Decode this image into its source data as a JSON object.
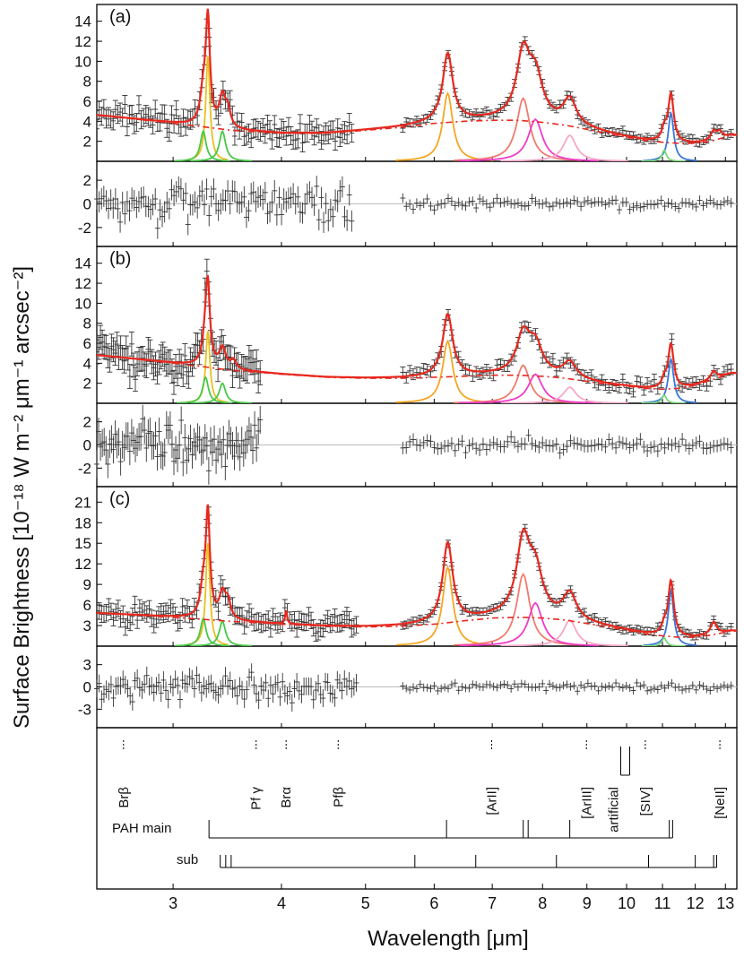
{
  "chart_data": {
    "type": "line",
    "x_scale": "log",
    "xlim": [
      2.45,
      13.4
    ],
    "xlabel": "Wavelength [μm]",
    "ylabel": "Surface Brightness [10⁻¹⁸ W m⁻² μm⁻¹ arcsec⁻²]",
    "x_ticks": [
      "3",
      "4",
      "5",
      "6",
      "7",
      "8",
      "9",
      "10",
      "11",
      "12",
      "13"
    ],
    "x_tick_values": [
      3,
      4,
      5,
      6,
      7,
      8,
      9,
      10,
      11,
      12,
      13
    ],
    "colors": {
      "total": "#e8281e",
      "continuum": "#e8281e",
      "pah_6_2": "#f5a623",
      "pah_7_7a": "#f07a6e",
      "pah_7_7b": "#f03cc8",
      "pah_8_6": "#f7a8c8",
      "pah_11_3": "#3a78d8",
      "pah_11_0": "#7ad87a",
      "pah_3_3": "#e8c020",
      "pah_3_3_green": "#48c848",
      "data": "#333333"
    },
    "panels": [
      {
        "label": "(a)",
        "ylim": [
          0,
          15.5
        ],
        "y_ticks": [
          "2",
          "4",
          "6",
          "8",
          "10",
          "12",
          "14"
        ],
        "y_tick_values": [
          2,
          4,
          6,
          8,
          10,
          12,
          14
        ],
        "residual_ylim": [
          -3.6,
          3.6
        ],
        "residual_ticks": [
          "-2",
          "0",
          "2"
        ],
        "residual_tick_values": [
          -2,
          0,
          2
        ],
        "continuum": {
          "x": [
            2.45,
            3.0,
            3.5,
            4.0,
            4.5,
            5.0,
            5.5,
            6.0,
            6.5,
            7.0,
            7.5,
            8.0,
            8.5,
            9.0,
            9.5,
            10.0,
            10.5,
            11.0,
            11.5,
            12.0,
            12.5,
            13.2
          ],
          "y": [
            4.6,
            3.8,
            3.1,
            2.8,
            2.8,
            3.1,
            3.4,
            3.8,
            4.0,
            4.1,
            4.1,
            3.9,
            3.6,
            3.2,
            2.8,
            2.4,
            2.1,
            1.9,
            1.8,
            1.8,
            2.0,
            2.6
          ]
        },
        "features": [
          {
            "center": 3.29,
            "height": 10.5,
            "width": 0.022,
            "color": "#e8c020"
          },
          {
            "center": 3.25,
            "height": 3.0,
            "width": 0.03,
            "color": "#48c848"
          },
          {
            "center": 3.42,
            "height": 3.0,
            "width": 0.035,
            "color": "#48c848"
          },
          {
            "center": 6.22,
            "height": 6.8,
            "width": 0.1,
            "color": "#f5a623"
          },
          {
            "center": 7.6,
            "height": 6.3,
            "width": 0.16,
            "color": "#f07a6e"
          },
          {
            "center": 7.85,
            "height": 4.2,
            "width": 0.18,
            "color": "#f03cc8"
          },
          {
            "center": 8.6,
            "height": 2.6,
            "width": 0.18,
            "color": "#f7a8c8"
          },
          {
            "center": 11.25,
            "height": 4.8,
            "width": 0.1,
            "color": "#3a78d8"
          },
          {
            "center": 11.05,
            "height": 1.1,
            "width": 0.08,
            "color": "#7ad87a"
          }
        ],
        "extra": [
          {
            "center": 3.47,
            "height": 1.6,
            "width": 0.03
          },
          {
            "center": 12.6,
            "height": 0.9,
            "width": 0.12
          },
          {
            "center": 12.8,
            "height": 0.6,
            "width": 0.1
          }
        ],
        "data_ranges": [
          [
            2.45,
            4.82,
            110
          ],
          [
            5.52,
            13.2,
            95
          ]
        ],
        "noise": 1.0,
        "res_noise": 1.0,
        "error": 0.9
      },
      {
        "label": "(b)",
        "ylim": [
          0,
          15.5
        ],
        "y_ticks": [
          "2",
          "4",
          "6",
          "8",
          "10",
          "12",
          "14"
        ],
        "y_tick_values": [
          2,
          4,
          6,
          8,
          10,
          12,
          14
        ],
        "residual_ylim": [
          -3.6,
          3.6
        ],
        "residual_ticks": [
          "-2",
          "0",
          "2"
        ],
        "residual_tick_values": [
          -2,
          0,
          2
        ],
        "continuum": {
          "x": [
            2.45,
            3.0,
            3.5,
            4.0,
            4.5,
            5.0,
            5.5,
            6.0,
            6.5,
            7.0,
            7.5,
            8.0,
            8.5,
            9.0,
            9.5,
            10.0,
            10.5,
            11.0,
            11.5,
            12.0,
            12.5,
            13.2
          ],
          "y": [
            4.8,
            4.0,
            3.3,
            2.9,
            2.6,
            2.5,
            2.5,
            2.6,
            2.7,
            2.8,
            2.8,
            2.7,
            2.5,
            2.2,
            1.9,
            1.7,
            1.5,
            1.4,
            1.5,
            1.8,
            2.3,
            3.0
          ]
        },
        "features": [
          {
            "center": 3.29,
            "height": 7.2,
            "width": 0.022,
            "color": "#e8c020"
          },
          {
            "center": 3.27,
            "height": 2.6,
            "width": 0.03,
            "color": "#48c848"
          },
          {
            "center": 3.42,
            "height": 2.0,
            "width": 0.035,
            "color": "#48c848"
          },
          {
            "center": 6.22,
            "height": 6.2,
            "width": 0.1,
            "color": "#f5a623"
          },
          {
            "center": 7.6,
            "height": 3.8,
            "width": 0.16,
            "color": "#f07a6e"
          },
          {
            "center": 7.85,
            "height": 2.9,
            "width": 0.18,
            "color": "#f03cc8"
          },
          {
            "center": 8.6,
            "height": 1.6,
            "width": 0.18,
            "color": "#f7a8c8"
          },
          {
            "center": 11.25,
            "height": 4.4,
            "width": 0.1,
            "color": "#3a78d8"
          },
          {
            "center": 11.05,
            "height": 0.8,
            "width": 0.08,
            "color": "#7ad87a"
          }
        ],
        "extra": [
          {
            "center": 3.52,
            "height": 0.9,
            "width": 0.03
          },
          {
            "center": 12.6,
            "height": 0.8,
            "width": 0.12
          }
        ],
        "data_ranges": [
          [
            2.45,
            3.78,
            90
          ],
          [
            5.52,
            13.2,
            95
          ]
        ],
        "noise": 1.7,
        "res_noise": 1.4,
        "error": 1.2
      },
      {
        "label": "(c)",
        "ylim": [
          0,
          23
        ],
        "y_ticks": [
          "3",
          "6",
          "9",
          "12",
          "15",
          "18",
          "21"
        ],
        "y_tick_values": [
          3,
          6,
          9,
          12,
          15,
          18,
          21
        ],
        "residual_ylim": [
          -5.5,
          5.5
        ],
        "residual_ticks": [
          "-3",
          "0",
          "3"
        ],
        "residual_tick_values": [
          -3,
          0,
          3
        ],
        "continuum": {
          "x": [
            2.45,
            3.0,
            3.5,
            4.0,
            4.5,
            5.0,
            5.5,
            6.0,
            6.5,
            7.0,
            7.5,
            8.0,
            8.5,
            9.0,
            9.5,
            10.0,
            10.5,
            11.0,
            11.5,
            12.0,
            12.5,
            13.2
          ],
          "y": [
            4.8,
            4.2,
            3.6,
            3.2,
            2.9,
            2.8,
            2.9,
            3.2,
            3.7,
            4.1,
            4.2,
            4.1,
            3.8,
            3.3,
            2.8,
            2.3,
            1.8,
            1.5,
            1.3,
            1.3,
            1.6,
            2.2
          ]
        },
        "features": [
          {
            "center": 3.29,
            "height": 15.0,
            "width": 0.022,
            "color": "#e8c020"
          },
          {
            "center": 3.25,
            "height": 4.0,
            "width": 0.03,
            "color": "#48c848"
          },
          {
            "center": 3.42,
            "height": 3.6,
            "width": 0.035,
            "color": "#48c848"
          },
          {
            "center": 6.22,
            "height": 11.5,
            "width": 0.1,
            "color": "#f5a623"
          },
          {
            "center": 7.6,
            "height": 10.5,
            "width": 0.16,
            "color": "#f07a6e"
          },
          {
            "center": 7.85,
            "height": 6.3,
            "width": 0.18,
            "color": "#f03cc8"
          },
          {
            "center": 8.6,
            "height": 3.8,
            "width": 0.18,
            "color": "#f7a8c8"
          },
          {
            "center": 11.25,
            "height": 8.0,
            "width": 0.1,
            "color": "#3a78d8"
          },
          {
            "center": 11.05,
            "height": 1.2,
            "width": 0.08,
            "color": "#7ad87a"
          }
        ],
        "extra": [
          {
            "center": 3.47,
            "height": 2.4,
            "width": 0.03
          },
          {
            "center": 4.05,
            "height": 2.0,
            "width": 0.012
          },
          {
            "center": 12.6,
            "height": 1.8,
            "width": 0.12
          }
        ],
        "data_ranges": [
          [
            2.45,
            4.88,
            110
          ],
          [
            5.52,
            13.2,
            95
          ]
        ],
        "noise": 1.4,
        "res_noise": 1.4,
        "error": 1.2
      }
    ],
    "line_markers": [
      {
        "label": "Brβ",
        "x": 2.63
      },
      {
        "label": "Pf γ",
        "x": 3.74
      },
      {
        "label": "Brα",
        "x": 4.05
      },
      {
        "label": "Pfβ",
        "x": 4.65
      },
      {
        "label": "[ArII]",
        "x": 6.99
      },
      {
        "label": "[ArIII]",
        "x": 8.99
      },
      {
        "label": "artificial",
        "x": 9.66
      },
      {
        "label": "[SIV]",
        "x": 10.51
      },
      {
        "label": "[NeII]",
        "x": 12.81
      }
    ],
    "pah_main": {
      "label": "PAH  main",
      "lines": [
        3.3,
        6.2,
        7.6,
        7.7,
        8.6,
        11.2,
        11.3
      ]
    },
    "pah_sub": {
      "label": "sub",
      "lines": [
        3.4,
        3.45,
        3.5,
        5.7,
        6.7,
        8.3,
        10.6,
        12.0,
        12.6,
        12.7
      ]
    }
  }
}
